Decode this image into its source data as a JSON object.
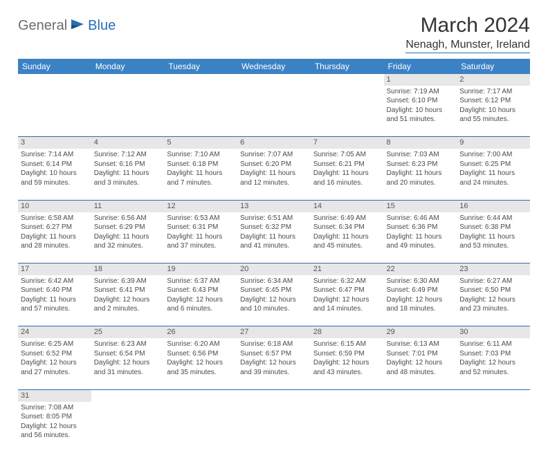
{
  "logo": {
    "part1": "General",
    "part2": "Blue"
  },
  "title": "March 2024",
  "location": "Nenagh, Munster, Ireland",
  "colors": {
    "header_bg": "#3b82c4",
    "accent": "#2a6db6",
    "daynum_bg": "#e7e7e7",
    "text": "#333333",
    "logo_gray": "#6d6d6d"
  },
  "days_of_week": [
    "Sunday",
    "Monday",
    "Tuesday",
    "Wednesday",
    "Thursday",
    "Friday",
    "Saturday"
  ],
  "weeks": [
    [
      null,
      null,
      null,
      null,
      null,
      {
        "n": "1",
        "sr": "7:19 AM",
        "ss": "6:10 PM",
        "dl": "10 hours and 51 minutes."
      },
      {
        "n": "2",
        "sr": "7:17 AM",
        "ss": "6:12 PM",
        "dl": "10 hours and 55 minutes."
      }
    ],
    [
      {
        "n": "3",
        "sr": "7:14 AM",
        "ss": "6:14 PM",
        "dl": "10 hours and 59 minutes."
      },
      {
        "n": "4",
        "sr": "7:12 AM",
        "ss": "6:16 PM",
        "dl": "11 hours and 3 minutes."
      },
      {
        "n": "5",
        "sr": "7:10 AM",
        "ss": "6:18 PM",
        "dl": "11 hours and 7 minutes."
      },
      {
        "n": "6",
        "sr": "7:07 AM",
        "ss": "6:20 PM",
        "dl": "11 hours and 12 minutes."
      },
      {
        "n": "7",
        "sr": "7:05 AM",
        "ss": "6:21 PM",
        "dl": "11 hours and 16 minutes."
      },
      {
        "n": "8",
        "sr": "7:03 AM",
        "ss": "6:23 PM",
        "dl": "11 hours and 20 minutes."
      },
      {
        "n": "9",
        "sr": "7:00 AM",
        "ss": "6:25 PM",
        "dl": "11 hours and 24 minutes."
      }
    ],
    [
      {
        "n": "10",
        "sr": "6:58 AM",
        "ss": "6:27 PM",
        "dl": "11 hours and 28 minutes."
      },
      {
        "n": "11",
        "sr": "6:56 AM",
        "ss": "6:29 PM",
        "dl": "11 hours and 32 minutes."
      },
      {
        "n": "12",
        "sr": "6:53 AM",
        "ss": "6:31 PM",
        "dl": "11 hours and 37 minutes."
      },
      {
        "n": "13",
        "sr": "6:51 AM",
        "ss": "6:32 PM",
        "dl": "11 hours and 41 minutes."
      },
      {
        "n": "14",
        "sr": "6:49 AM",
        "ss": "6:34 PM",
        "dl": "11 hours and 45 minutes."
      },
      {
        "n": "15",
        "sr": "6:46 AM",
        "ss": "6:36 PM",
        "dl": "11 hours and 49 minutes."
      },
      {
        "n": "16",
        "sr": "6:44 AM",
        "ss": "6:38 PM",
        "dl": "11 hours and 53 minutes."
      }
    ],
    [
      {
        "n": "17",
        "sr": "6:42 AM",
        "ss": "6:40 PM",
        "dl": "11 hours and 57 minutes."
      },
      {
        "n": "18",
        "sr": "6:39 AM",
        "ss": "6:41 PM",
        "dl": "12 hours and 2 minutes."
      },
      {
        "n": "19",
        "sr": "6:37 AM",
        "ss": "6:43 PM",
        "dl": "12 hours and 6 minutes."
      },
      {
        "n": "20",
        "sr": "6:34 AM",
        "ss": "6:45 PM",
        "dl": "12 hours and 10 minutes."
      },
      {
        "n": "21",
        "sr": "6:32 AM",
        "ss": "6:47 PM",
        "dl": "12 hours and 14 minutes."
      },
      {
        "n": "22",
        "sr": "6:30 AM",
        "ss": "6:49 PM",
        "dl": "12 hours and 18 minutes."
      },
      {
        "n": "23",
        "sr": "6:27 AM",
        "ss": "6:50 PM",
        "dl": "12 hours and 23 minutes."
      }
    ],
    [
      {
        "n": "24",
        "sr": "6:25 AM",
        "ss": "6:52 PM",
        "dl": "12 hours and 27 minutes."
      },
      {
        "n": "25",
        "sr": "6:23 AM",
        "ss": "6:54 PM",
        "dl": "12 hours and 31 minutes."
      },
      {
        "n": "26",
        "sr": "6:20 AM",
        "ss": "6:56 PM",
        "dl": "12 hours and 35 minutes."
      },
      {
        "n": "27",
        "sr": "6:18 AM",
        "ss": "6:57 PM",
        "dl": "12 hours and 39 minutes."
      },
      {
        "n": "28",
        "sr": "6:15 AM",
        "ss": "6:59 PM",
        "dl": "12 hours and 43 minutes."
      },
      {
        "n": "29",
        "sr": "6:13 AM",
        "ss": "7:01 PM",
        "dl": "12 hours and 48 minutes."
      },
      {
        "n": "30",
        "sr": "6:11 AM",
        "ss": "7:03 PM",
        "dl": "12 hours and 52 minutes."
      }
    ],
    [
      {
        "n": "31",
        "sr": "7:08 AM",
        "ss": "8:05 PM",
        "dl": "12 hours and 56 minutes."
      },
      null,
      null,
      null,
      null,
      null,
      null
    ]
  ],
  "labels": {
    "sunrise": "Sunrise:",
    "sunset": "Sunset:",
    "daylight": "Daylight:"
  }
}
